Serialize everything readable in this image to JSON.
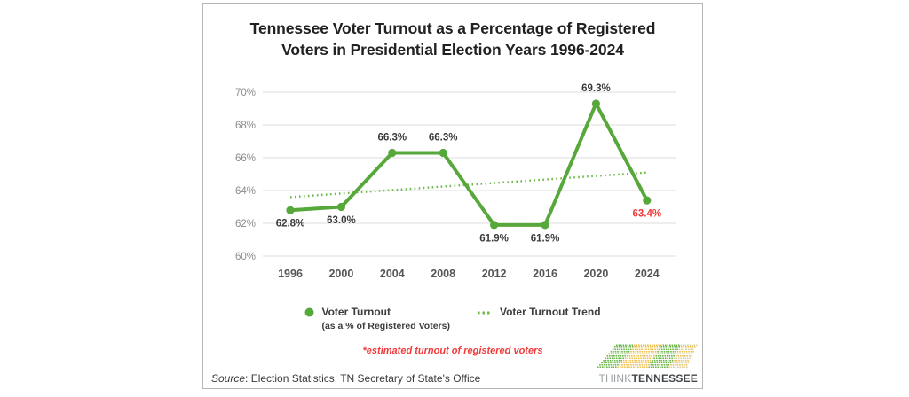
{
  "title": {
    "line1": "Tennessee Voter Turnout as a Percentage of Registered",
    "line2": "Voters in Presidential Election Years 1996-2024"
  },
  "chart_data": {
    "type": "line",
    "title": "Tennessee Voter Turnout as a Percentage of Registered Voters in Presidential Election Years 1996-2024",
    "categories": [
      "1996",
      "2000",
      "2004",
      "2008",
      "2012",
      "2016",
      "2020",
      "2024"
    ],
    "series": [
      {
        "name": "Voter Turnout",
        "values": [
          62.8,
          63.0,
          66.3,
          66.3,
          61.9,
          61.9,
          69.3,
          63.4
        ]
      },
      {
        "name": "Voter Turnout Trend",
        "kind": "trend",
        "start_value": 63.6,
        "end_value": 65.1
      }
    ],
    "point_labels": [
      "62.8%",
      "63.0%",
      "66.3%",
      "66.3%",
      "61.9%",
      "61.9%",
      "69.3%",
      "63.4%"
    ],
    "point_label_positions": [
      "below",
      "below",
      "above",
      "above",
      "below",
      "below",
      "above",
      "below"
    ],
    "highlight_point_index": 7,
    "y_ticks": [
      {
        "value": 70,
        "label": "70%"
      },
      {
        "value": 68,
        "label": "68%"
      },
      {
        "value": 66,
        "label": "66%"
      },
      {
        "value": 64,
        "label": "64%"
      },
      {
        "value": 62,
        "label": "62%"
      },
      {
        "value": 60,
        "label": "60%"
      }
    ],
    "ylim": [
      60,
      70
    ],
    "grid": true,
    "legend_position": "bottom",
    "colors": {
      "line": "#57a83b",
      "trend": "#6cb84a",
      "grid": "#dcdcdc",
      "axis_tick_text": "#8c8c8c",
      "category_text": "#555555",
      "point_label_text": "#3b3b3b",
      "highlight_text": "#f03b3b"
    }
  },
  "legend": {
    "turnout_label": "Voter Turnout",
    "turnout_sublabel": "(as a % of Registered Voters)",
    "trend_label": "Voter Turnout Trend"
  },
  "note": "*estimated turnout of registered voters",
  "source": {
    "prefix": "Source",
    "rest": ": Election Statistics, TN Secretary of State's Office"
  },
  "logo": {
    "think": "THINK",
    "tennessee": "TENNESSEE",
    "dot_colors": {
      "green": "#6cb54a",
      "gold": "#eec14f",
      "pale": "#d9cf9f"
    }
  }
}
